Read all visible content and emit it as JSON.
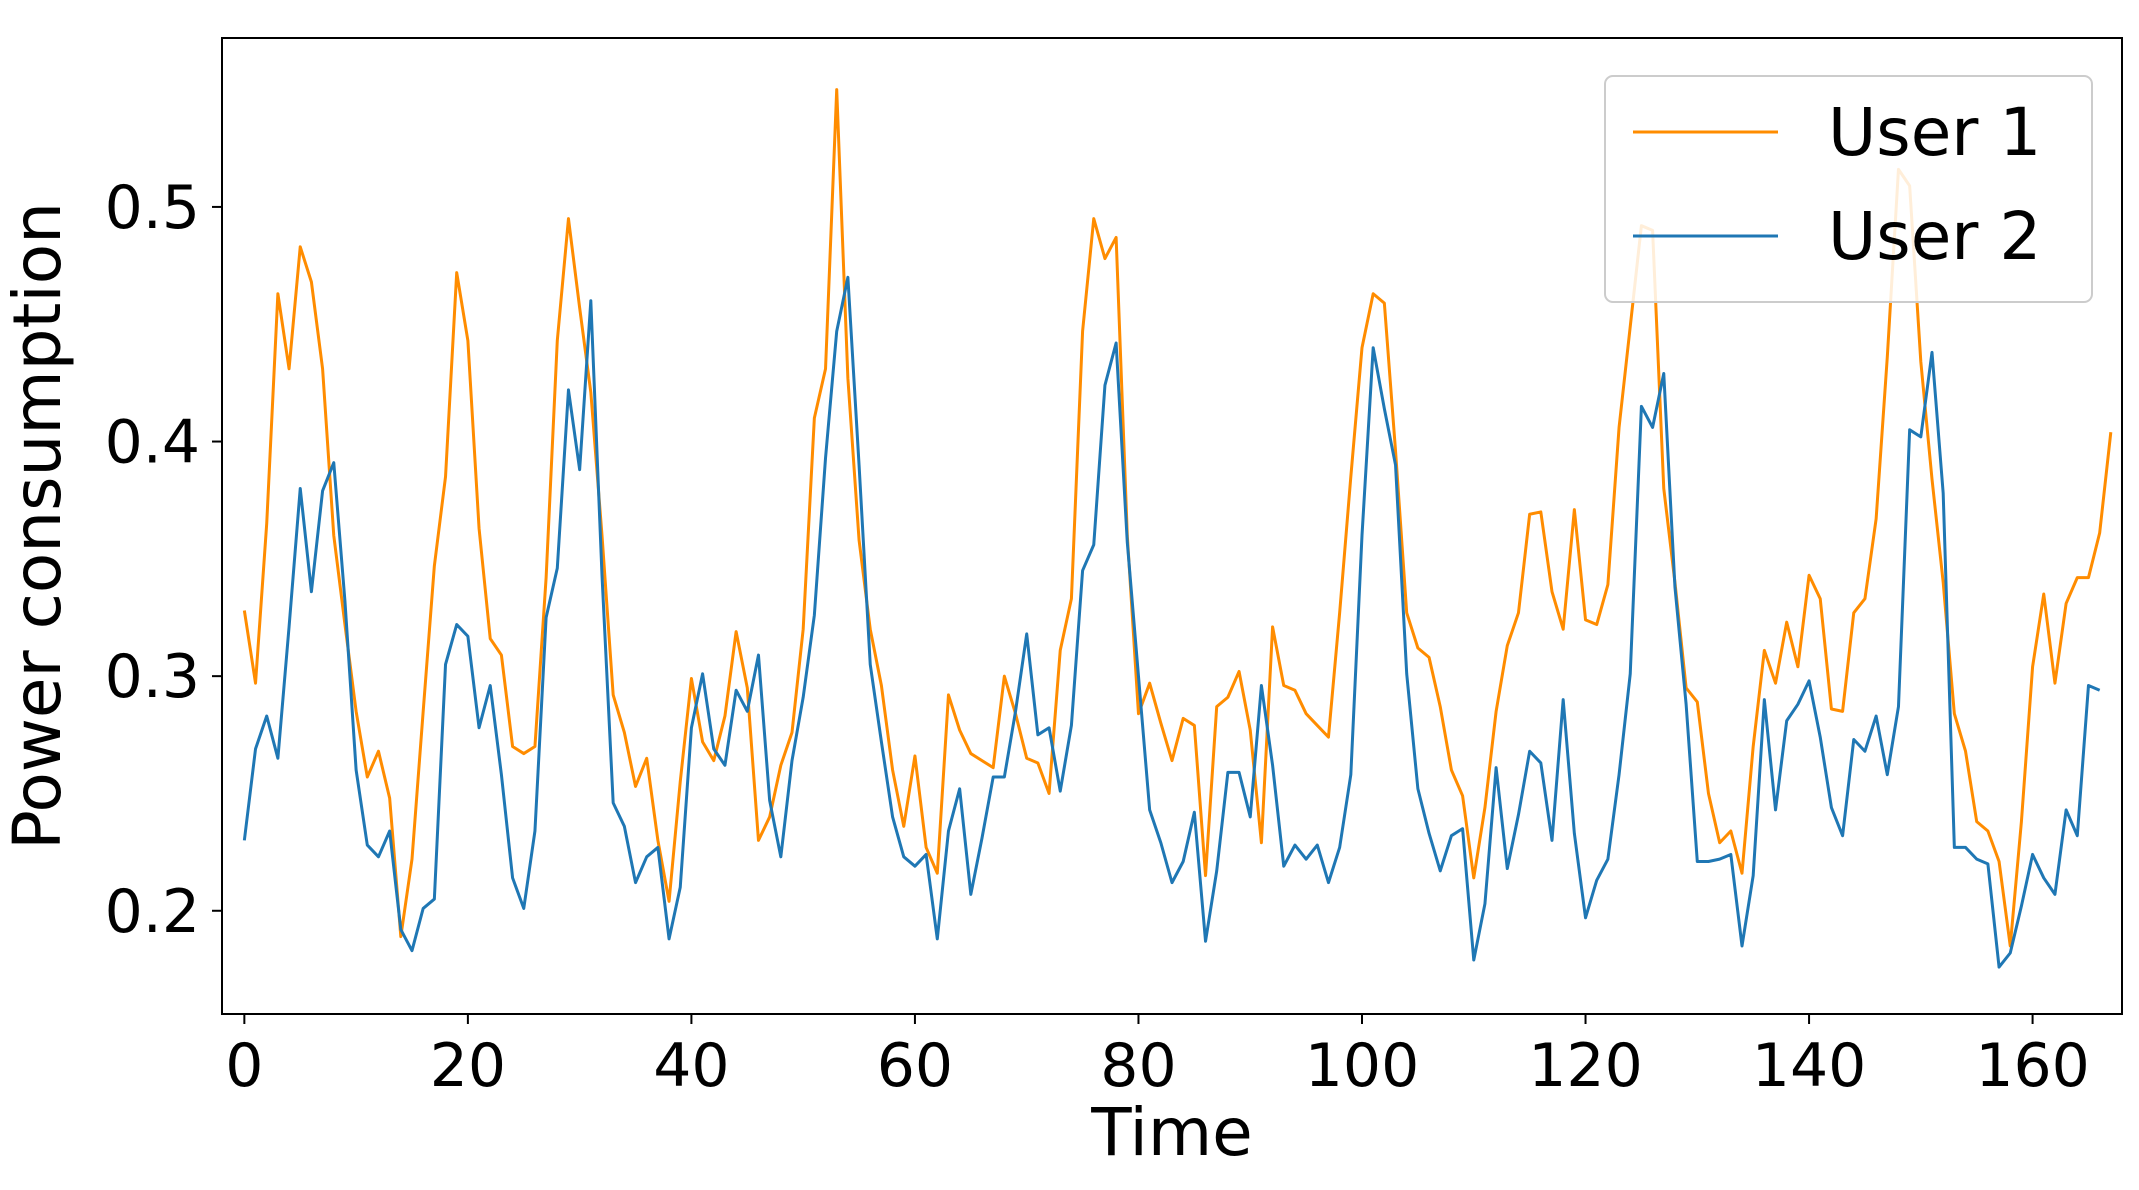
{
  "chart_data": {
    "type": "line",
    "xlabel": "Time",
    "ylabel": "Power consumption",
    "xlim": [
      -2,
      168
    ],
    "ylim": [
      0.156,
      0.572
    ],
    "xticks": [
      0,
      20,
      40,
      60,
      80,
      100,
      120,
      140,
      160
    ],
    "yticks": [
      0.2,
      0.3,
      0.4,
      0.5
    ],
    "xtick_labels": [
      "0",
      "20",
      "40",
      "60",
      "80",
      "100",
      "120",
      "140",
      "160"
    ],
    "ytick_labels": [
      "0.2",
      "0.3",
      "0.4",
      "0.5"
    ],
    "grid": false,
    "legend_position": "top-right",
    "series": [
      {
        "name": "User 1",
        "color": "#ff8c00",
        "values": [
          0.328,
          0.297,
          0.365,
          0.463,
          0.431,
          0.483,
          0.468,
          0.431,
          0.36,
          0.322,
          0.285,
          0.257,
          0.268,
          0.248,
          0.189,
          0.222,
          0.285,
          0.347,
          0.385,
          0.472,
          0.443,
          0.363,
          0.316,
          0.309,
          0.27,
          0.267,
          0.27,
          0.342,
          0.443,
          0.495,
          0.457,
          0.421,
          0.36,
          0.292,
          0.276,
          0.253,
          0.265,
          0.23,
          0.204,
          0.255,
          0.299,
          0.272,
          0.264,
          0.283,
          0.319,
          0.295,
          0.23,
          0.24,
          0.262,
          0.276,
          0.32,
          0.41,
          0.431,
          0.55,
          0.427,
          0.358,
          0.32,
          0.296,
          0.26,
          0.236,
          0.266,
          0.227,
          0.216,
          0.292,
          0.277,
          0.267,
          0.264,
          0.261,
          0.3,
          0.284,
          0.265,
          0.263,
          0.25,
          0.311,
          0.333,
          0.447,
          0.495,
          0.478,
          0.487,
          0.36,
          0.284,
          0.297,
          0.28,
          0.264,
          0.282,
          0.279,
          0.215,
          0.287,
          0.291,
          0.302,
          0.277,
          0.229,
          0.321,
          0.296,
          0.294,
          0.284,
          0.279,
          0.274,
          0.327,
          0.385,
          0.44,
          0.463,
          0.459,
          0.396,
          0.327,
          0.312,
          0.308,
          0.287,
          0.26,
          0.249,
          0.214,
          0.244,
          0.285,
          0.313,
          0.327,
          0.369,
          0.37,
          0.336,
          0.32,
          0.371,
          0.324,
          0.322,
          0.339,
          0.406,
          0.449,
          0.492,
          0.49,
          0.38,
          0.34,
          0.295,
          0.289,
          0.25,
          0.229,
          0.234,
          0.216,
          0.27,
          0.311,
          0.297,
          0.323,
          0.304,
          0.343,
          0.333,
          0.286,
          0.285,
          0.327,
          0.333,
          0.367,
          0.436,
          0.516,
          0.509,
          0.434,
          0.384,
          0.34,
          0.284,
          0.268,
          0.238,
          0.234,
          0.221,
          0.185,
          0.238,
          0.304,
          0.335,
          0.297,
          0.331,
          0.342,
          0.342,
          0.361,
          0.404
        ]
      },
      {
        "name": "User 2",
        "color": "#1f77b4",
        "values": [
          0.23,
          0.269,
          0.283,
          0.265,
          0.321,
          0.38,
          0.336,
          0.379,
          0.391,
          0.332,
          0.26,
          0.228,
          0.223,
          0.234,
          0.192,
          0.183,
          0.201,
          0.205,
          0.305,
          0.322,
          0.317,
          0.278,
          0.296,
          0.258,
          0.214,
          0.201,
          0.234,
          0.325,
          0.346,
          0.422,
          0.388,
          0.46,
          0.343,
          0.246,
          0.236,
          0.212,
          0.223,
          0.227,
          0.188,
          0.21,
          0.278,
          0.301,
          0.269,
          0.262,
          0.294,
          0.285,
          0.309,
          0.247,
          0.223,
          0.264,
          0.291,
          0.326,
          0.393,
          0.447,
          0.47,
          0.39,
          0.305,
          0.272,
          0.24,
          0.223,
          0.219,
          0.224,
          0.188,
          0.234,
          0.252,
          0.207,
          0.231,
          0.257,
          0.257,
          0.285,
          0.318,
          0.275,
          0.278,
          0.251,
          0.279,
          0.345,
          0.356,
          0.424,
          0.442,
          0.357,
          0.3,
          0.243,
          0.229,
          0.212,
          0.221,
          0.242,
          0.187,
          0.217,
          0.259,
          0.259,
          0.24,
          0.296,
          0.262,
          0.219,
          0.228,
          0.222,
          0.228,
          0.212,
          0.227,
          0.258,
          0.36,
          0.44,
          0.414,
          0.39,
          0.301,
          0.252,
          0.233,
          0.217,
          0.232,
          0.235,
          0.179,
          0.203,
          0.261,
          0.218,
          0.241,
          0.268,
          0.263,
          0.23,
          0.29,
          0.233,
          0.197,
          0.213,
          0.222,
          0.258,
          0.301,
          0.415,
          0.406,
          0.429,
          0.338,
          0.288,
          0.221,
          0.221,
          0.222,
          0.224,
          0.185,
          0.215,
          0.29,
          0.243,
          0.281,
          0.288,
          0.298,
          0.274,
          0.244,
          0.232,
          0.273,
          0.268,
          0.283,
          0.258,
          0.287,
          0.405,
          0.402,
          0.438,
          0.378,
          0.227,
          0.227,
          0.222,
          0.22,
          0.176,
          0.182,
          0.202,
          0.224,
          0.214,
          0.207,
          0.243,
          0.232,
          0.296,
          0.294
        ]
      }
    ]
  }
}
